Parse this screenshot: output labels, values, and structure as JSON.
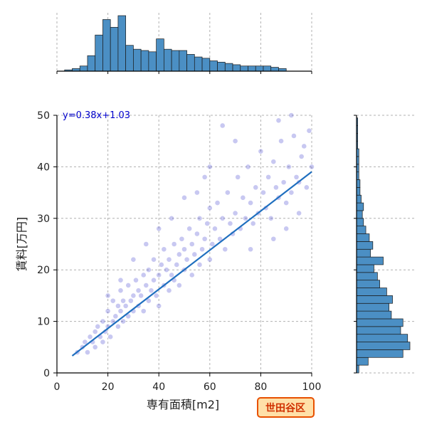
{
  "chart_data": {
    "type": "scatter",
    "xlabel": "専有面積[m2]",
    "ylabel": "賃料[万円]",
    "xlim": [
      0,
      100
    ],
    "ylim": [
      0,
      50
    ],
    "x_ticks": [
      "0",
      "20",
      "40",
      "60",
      "80",
      "100"
    ],
    "y_ticks": [
      "0",
      "10",
      "20",
      "30",
      "40",
      "50"
    ],
    "grid": true,
    "regression": {
      "label": "y=0.38x+1.03",
      "slope": 0.38,
      "intercept": 1.03,
      "x_range": [
        6,
        100
      ]
    },
    "badge": "世田谷区",
    "point_color": "#3a3acc",
    "hist_color": "#4b8fc4",
    "line_color": "#1f6fbf",
    "sample_points": [
      [
        8,
        4
      ],
      [
        10,
        5
      ],
      [
        11,
        6
      ],
      [
        12,
        4
      ],
      [
        13,
        7
      ],
      [
        14,
        6
      ],
      [
        15,
        8
      ],
      [
        15,
        5
      ],
      [
        16,
        9
      ],
      [
        17,
        7
      ],
      [
        18,
        6
      ],
      [
        18,
        10
      ],
      [
        19,
        8
      ],
      [
        20,
        9
      ],
      [
        20,
        12
      ],
      [
        21,
        7
      ],
      [
        22,
        10
      ],
      [
        22,
        14
      ],
      [
        23,
        11
      ],
      [
        24,
        9
      ],
      [
        24,
        13
      ],
      [
        25,
        12
      ],
      [
        25,
        16
      ],
      [
        26,
        10
      ],
      [
        26,
        14
      ],
      [
        27,
        13
      ],
      [
        28,
        11
      ],
      [
        28,
        17
      ],
      [
        29,
        14
      ],
      [
        30,
        12
      ],
      [
        30,
        15
      ],
      [
        31,
        18
      ],
      [
        32,
        13
      ],
      [
        32,
        16
      ],
      [
        33,
        15
      ],
      [
        34,
        19
      ],
      [
        34,
        12
      ],
      [
        35,
        17
      ],
      [
        36,
        14
      ],
      [
        36,
        20
      ],
      [
        37,
        16
      ],
      [
        38,
        18
      ],
      [
        38,
        22
      ],
      [
        39,
        15
      ],
      [
        40,
        19
      ],
      [
        40,
        13
      ],
      [
        41,
        21
      ],
      [
        42,
        17
      ],
      [
        42,
        24
      ],
      [
        43,
        20
      ],
      [
        44,
        16
      ],
      [
        44,
        22
      ],
      [
        45,
        19
      ],
      [
        46,
        25
      ],
      [
        46,
        18
      ],
      [
        47,
        21
      ],
      [
        48,
        23
      ],
      [
        48,
        17
      ],
      [
        49,
        26
      ],
      [
        50,
        20
      ],
      [
        50,
        24
      ],
      [
        51,
        22
      ],
      [
        52,
        28
      ],
      [
        53,
        19
      ],
      [
        53,
        25
      ],
      [
        54,
        23
      ],
      [
        55,
        27
      ],
      [
        56,
        21
      ],
      [
        56,
        30
      ],
      [
        57,
        24
      ],
      [
        58,
        26
      ],
      [
        59,
        29
      ],
      [
        60,
        22
      ],
      [
        60,
        32
      ],
      [
        61,
        25
      ],
      [
        62,
        28
      ],
      [
        63,
        33
      ],
      [
        64,
        26
      ],
      [
        65,
        30
      ],
      [
        66,
        24
      ],
      [
        67,
        35
      ],
      [
        68,
        29
      ],
      [
        69,
        27
      ],
      [
        70,
        31
      ],
      [
        71,
        38
      ],
      [
        72,
        28
      ],
      [
        73,
        34
      ],
      [
        74,
        30
      ],
      [
        75,
        40
      ],
      [
        76,
        33
      ],
      [
        77,
        29
      ],
      [
        78,
        36
      ],
      [
        79,
        31
      ],
      [
        80,
        43
      ],
      [
        81,
        35
      ],
      [
        82,
        32
      ],
      [
        83,
        38
      ],
      [
        84,
        30
      ],
      [
        85,
        41
      ],
      [
        86,
        36
      ],
      [
        87,
        34
      ],
      [
        88,
        45
      ],
      [
        89,
        37
      ],
      [
        90,
        33
      ],
      [
        91,
        40
      ],
      [
        92,
        35
      ],
      [
        93,
        46
      ],
      [
        94,
        38
      ],
      [
        95,
        37
      ],
      [
        96,
        42
      ],
      [
        97,
        44
      ],
      [
        98,
        36
      ],
      [
        99,
        47
      ],
      [
        100,
        40
      ],
      [
        65,
        48
      ],
      [
        70,
        45
      ],
      [
        60,
        40
      ],
      [
        58,
        38
      ],
      [
        92,
        50
      ],
      [
        87,
        49
      ],
      [
        30,
        22
      ],
      [
        25,
        18
      ],
      [
        20,
        15
      ],
      [
        45,
        30
      ],
      [
        50,
        34
      ],
      [
        55,
        35
      ],
      [
        40,
        28
      ],
      [
        35,
        25
      ],
      [
        76,
        24
      ],
      [
        85,
        26
      ],
      [
        90,
        28
      ],
      [
        95,
        31
      ]
    ],
    "hist_x": {
      "bin_start": 0,
      "bin_width": 3,
      "counts": [
        0,
        1,
        2,
        4,
        12,
        28,
        40,
        34,
        43,
        20,
        17,
        16,
        15,
        25,
        17,
        16,
        16,
        13,
        11,
        10,
        8,
        7,
        6,
        5,
        4,
        4,
        4,
        4,
        3,
        2
      ]
    },
    "hist_y": {
      "bin_start": 0,
      "bin_width": 1.5,
      "counts": [
        2,
        10,
        40,
        46,
        44,
        38,
        40,
        30,
        28,
        31,
        26,
        20,
        18,
        15,
        23,
        12,
        14,
        11,
        8,
        6,
        5,
        6,
        4,
        3,
        3,
        2,
        2,
        2,
        2,
        1,
        1,
        1,
        1,
        0
      ]
    }
  }
}
